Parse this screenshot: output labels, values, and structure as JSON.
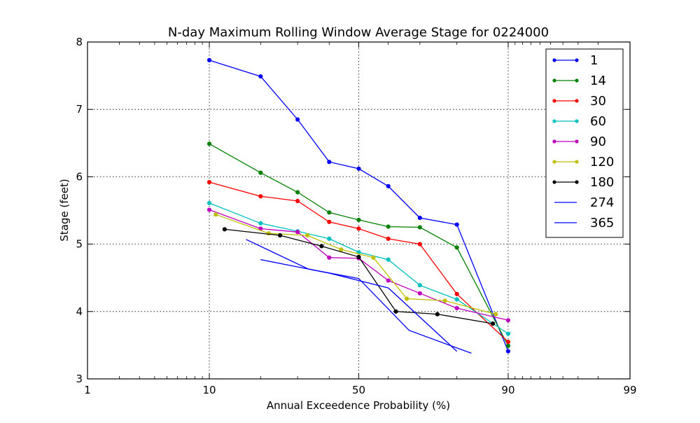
{
  "chart_data": {
    "type": "line",
    "title": "N-day Maximum Rolling Window Average Stage for 0224000",
    "xlabel": "Annual Exceedence Probability (%)",
    "ylabel": "Stage (feet)",
    "x_scale": "probability",
    "xlim": [
      1,
      99
    ],
    "ylim": [
      3,
      8
    ],
    "x_ticks": [
      1,
      10,
      50,
      90,
      99
    ],
    "x_tick_labels": [
      "1",
      "10",
      "50",
      "90",
      "99"
    ],
    "y_ticks": [
      3,
      4,
      5,
      6,
      7,
      8
    ],
    "y_tick_labels": [
      "3",
      "4",
      "5",
      "6",
      "7",
      "8"
    ],
    "grid": true,
    "legend_position": "top-right",
    "series": [
      {
        "name": "1",
        "color": "#0000ff",
        "markers": true,
        "x": [
          10,
          20,
          30,
          40,
          50,
          60,
          70,
          80,
          90
        ],
        "y": [
          7.73,
          7.49,
          6.85,
          6.22,
          6.12,
          5.86,
          5.39,
          5.29,
          3.41
        ]
      },
      {
        "name": "14",
        "color": "#008000",
        "markers": true,
        "x": [
          10,
          20,
          30,
          40,
          50,
          60,
          70,
          80,
          90
        ],
        "y": [
          6.49,
          6.06,
          5.77,
          5.47,
          5.36,
          5.26,
          5.25,
          4.95,
          3.49
        ]
      },
      {
        "name": "30",
        "color": "#ff0000",
        "markers": true,
        "x": [
          10,
          20,
          30,
          40,
          50,
          60,
          70,
          80,
          90
        ],
        "y": [
          5.92,
          5.71,
          5.64,
          5.33,
          5.23,
          5.08,
          5.0,
          4.26,
          3.55
        ]
      },
      {
        "name": "60",
        "color": "#00bfbf",
        "markers": true,
        "x": [
          10,
          20,
          30,
          40,
          50,
          60,
          70,
          80,
          90
        ],
        "y": [
          5.61,
          5.31,
          5.19,
          5.08,
          4.88,
          4.77,
          4.39,
          4.18,
          3.67
        ]
      },
      {
        "name": "90",
        "color": "#bf00bf",
        "markers": true,
        "x": [
          10,
          20,
          30,
          40,
          50,
          60,
          70,
          80,
          90
        ],
        "y": [
          5.51,
          5.23,
          5.18,
          4.8,
          4.79,
          4.46,
          4.27,
          4.05,
          3.87
        ]
      },
      {
        "name": "120",
        "color": "#bfbf00",
        "markers": true,
        "x": [
          11,
          22,
          33,
          44,
          55,
          66,
          77,
          88
        ],
        "y": [
          5.44,
          5.16,
          5.13,
          4.92,
          4.8,
          4.19,
          4.16,
          3.96
        ]
      },
      {
        "name": "180",
        "color": "#000000",
        "markers": true,
        "x": [
          12.5,
          25,
          37.5,
          50,
          62.5,
          75,
          87.5
        ],
        "y": [
          5.22,
          5.13,
          4.97,
          4.81,
          4.0,
          3.96,
          3.82
        ]
      },
      {
        "name": "274",
        "color": "#0000ff",
        "markers": false,
        "x": [
          16.7,
          33.3,
          50,
          66.7,
          83.3
        ],
        "y": [
          5.07,
          4.63,
          4.49,
          3.72,
          3.38
        ]
      },
      {
        "name": "365",
        "color": "#0000ff",
        "markers": false,
        "x": [
          20,
          40,
          60,
          80
        ],
        "y": [
          4.77,
          4.57,
          4.35,
          3.41
        ]
      }
    ]
  }
}
